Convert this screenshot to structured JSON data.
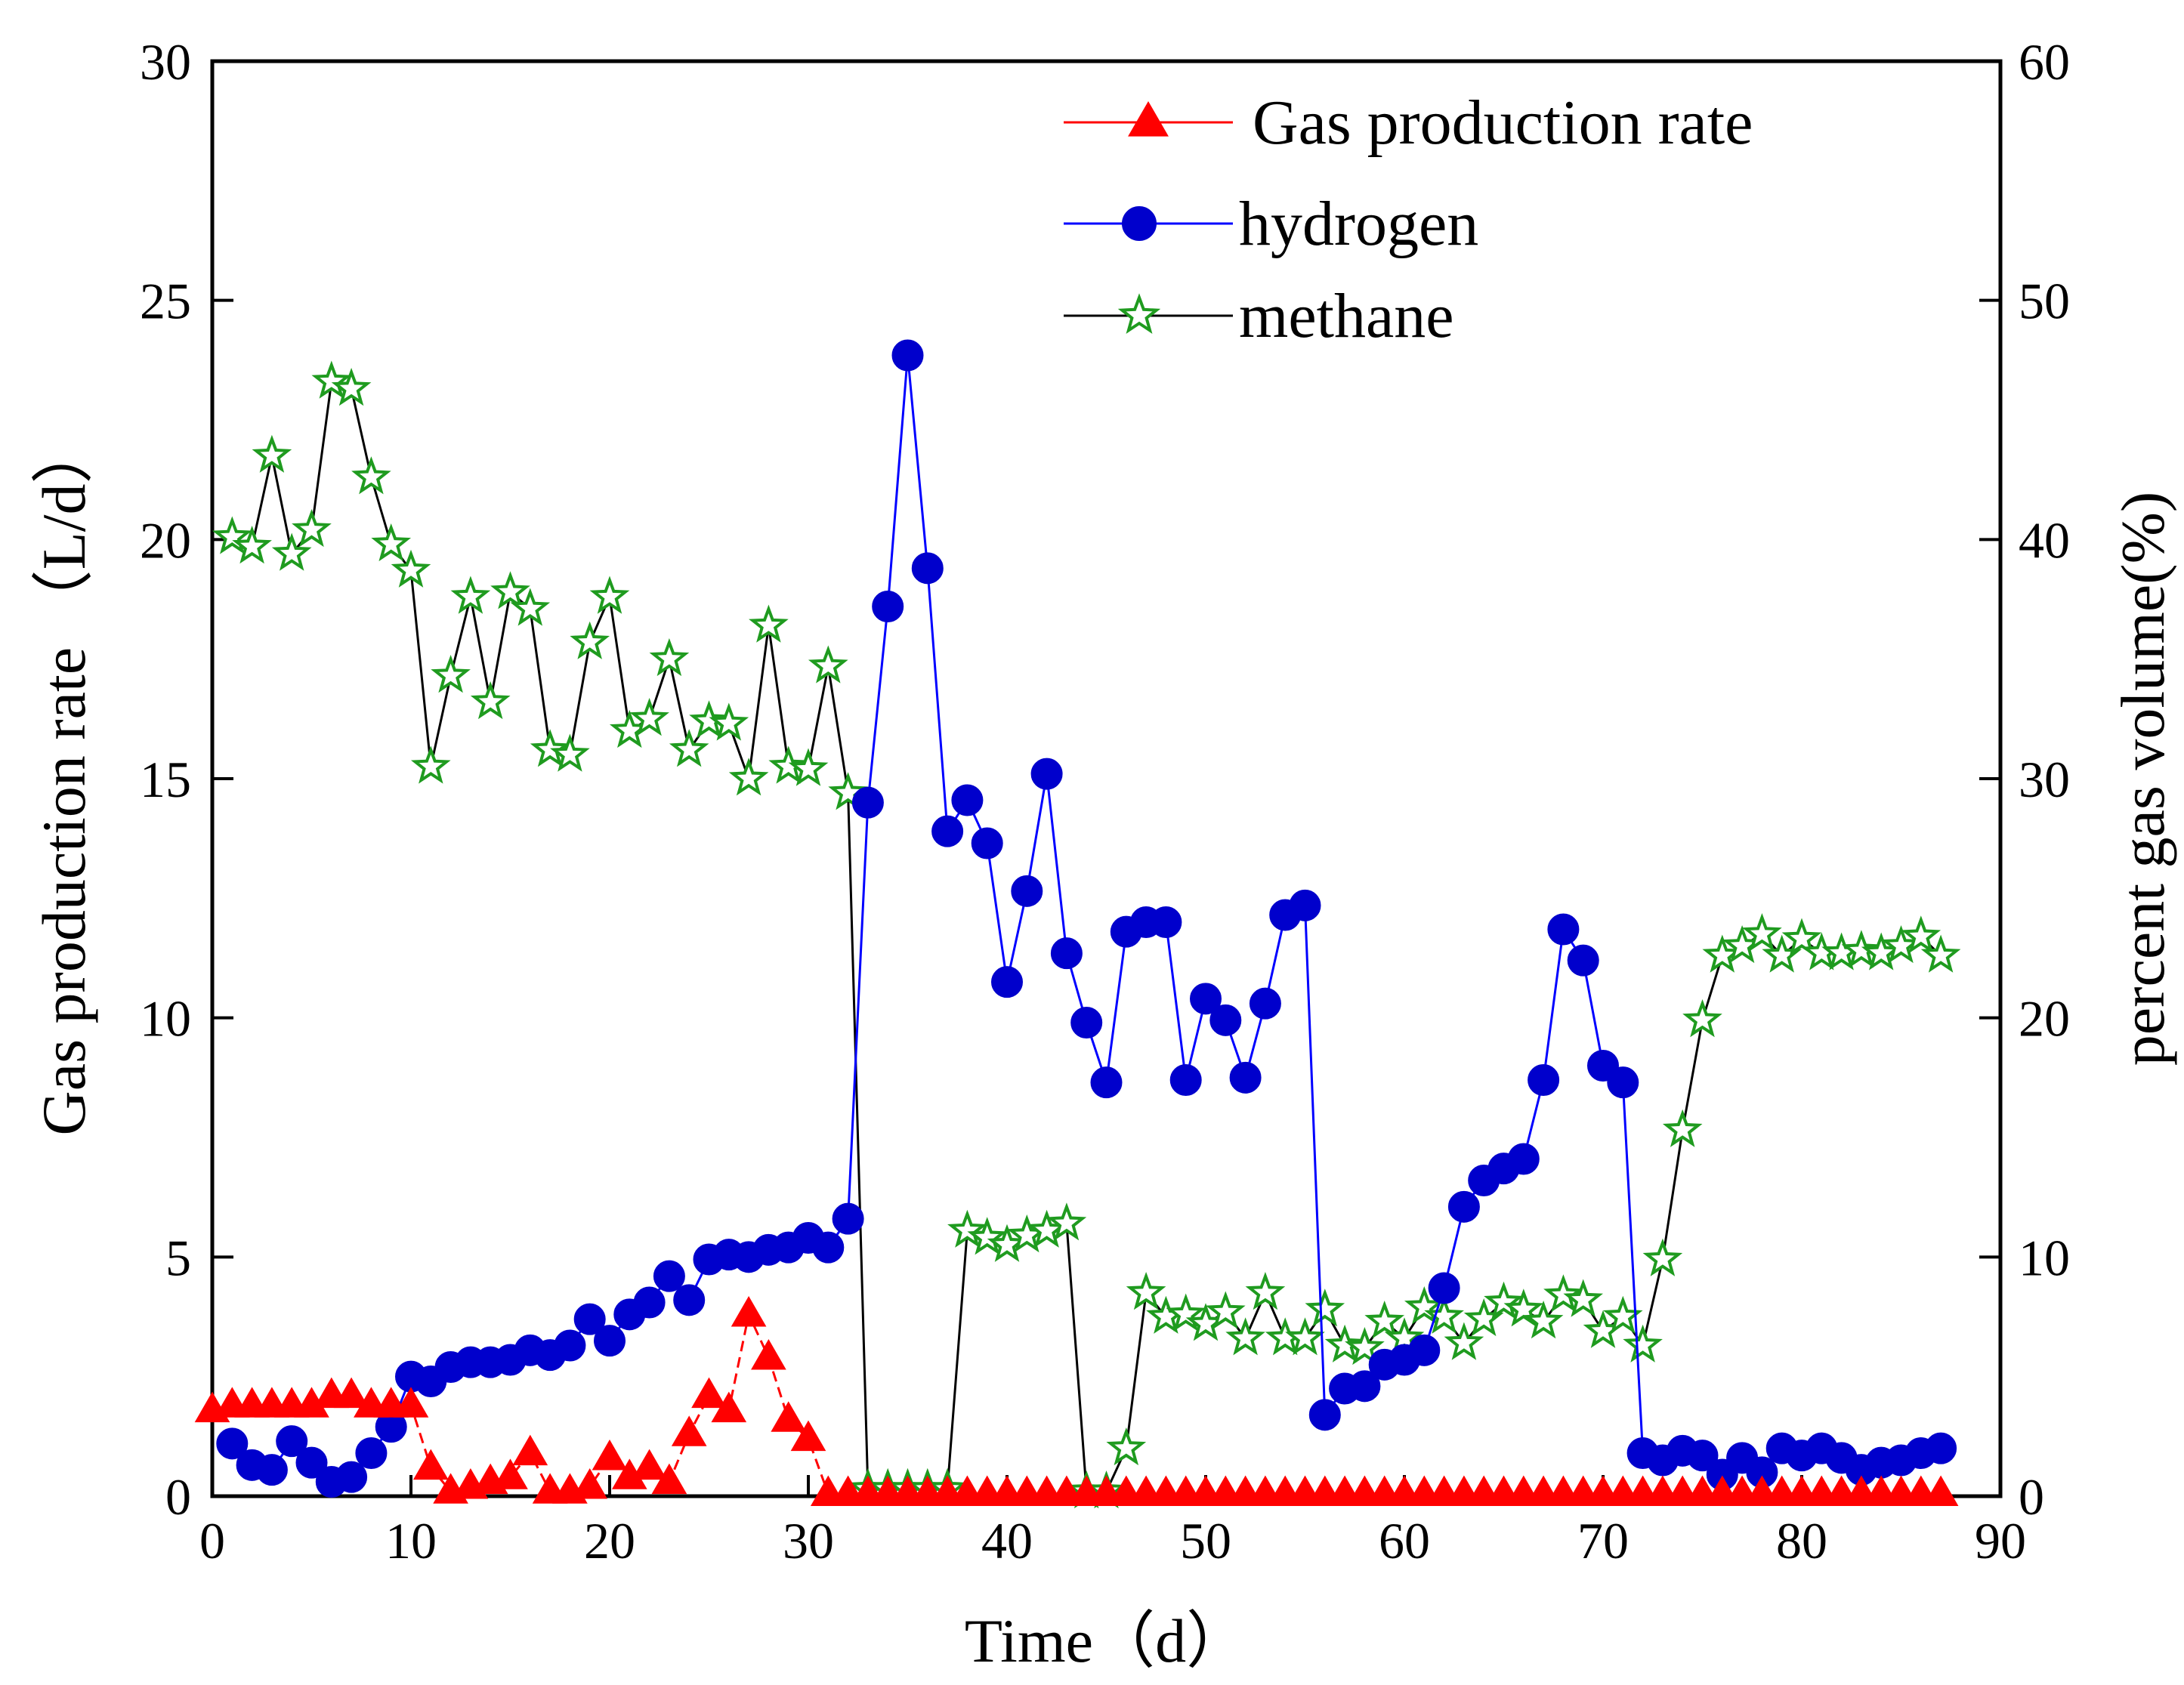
{
  "chart_data": {
    "type": "line",
    "xlabel": "Time（d）",
    "ylabel_left": "Gas production rate （L/d）",
    "ylabel_right": "percent gas volume(%)",
    "xlim": [
      0,
      90
    ],
    "ylim_left": [
      0,
      30
    ],
    "ylim_right": [
      0,
      60
    ],
    "x_ticks": [
      0,
      10,
      20,
      30,
      40,
      50,
      60,
      70,
      80,
      90
    ],
    "y_ticks_left": [
      0,
      5,
      10,
      15,
      20,
      25,
      30
    ],
    "y_ticks_right": [
      0,
      10,
      20,
      30,
      40,
      50,
      60
    ],
    "grid": false,
    "legend_position": "top-right",
    "series": [
      {
        "name": "Gas production rate",
        "axis": "left",
        "color": "#ff0000",
        "marker": "triangle",
        "x": [
          0,
          1,
          2,
          3,
          4,
          5,
          6,
          7,
          8,
          9,
          10,
          11,
          12,
          13,
          14,
          15,
          16,
          17,
          18,
          19,
          20,
          21,
          22,
          23,
          24,
          25,
          26,
          27,
          28,
          29,
          30,
          31,
          32,
          33,
          34,
          35,
          36,
          37,
          38,
          39,
          40,
          41,
          42,
          43,
          44,
          45,
          46,
          47,
          48,
          49,
          50,
          51,
          52,
          53,
          54,
          55,
          56,
          57,
          58,
          59,
          60,
          61,
          62,
          63,
          64,
          65,
          66,
          67,
          68,
          69,
          70,
          71,
          72,
          73,
          74,
          75,
          76,
          77,
          78,
          79,
          80,
          81,
          82,
          83,
          84,
          85,
          86,
          87
        ],
        "values": [
          1.8,
          1.9,
          1.9,
          1.9,
          1.9,
          1.9,
          2.1,
          2.1,
          1.9,
          1.9,
          1.9,
          0.6,
          0.1,
          0.2,
          0.3,
          0.4,
          0.9,
          0.1,
          0.1,
          0.2,
          0.8,
          0.4,
          0.6,
          0.3,
          1.3,
          2.1,
          1.8,
          3.8,
          2.9,
          1.6,
          1.2,
          0.05,
          0.05,
          0.05,
          0.05,
          0.05,
          0.05,
          0.05,
          0.05,
          0.05,
          0.05,
          0.05,
          0.05,
          0.05,
          0.05,
          0.05,
          0.05,
          0.05,
          0.05,
          0.05,
          0.05,
          0.05,
          0.05,
          0.05,
          0.05,
          0.05,
          0.05,
          0.05,
          0.05,
          0.05,
          0.05,
          0.05,
          0.05,
          0.05,
          0.05,
          0.05,
          0.05,
          0.05,
          0.05,
          0.05,
          0.05,
          0.05,
          0.05,
          0.05,
          0.05,
          0.05,
          0.05,
          0.05,
          0.05,
          0.05,
          0.05,
          0.05,
          0.05,
          0.05,
          0.05,
          0.05,
          0.05,
          0.05
        ]
      },
      {
        "name": "hydrogen",
        "axis": "right",
        "color": "#0000cc",
        "marker": "circle",
        "x": [
          1,
          2,
          3,
          4,
          5,
          6,
          7,
          8,
          9,
          10,
          11,
          12,
          13,
          14,
          15,
          16,
          17,
          18,
          19,
          20,
          21,
          22,
          23,
          24,
          25,
          26,
          27,
          28,
          29,
          30,
          31,
          32,
          33,
          34,
          35,
          36,
          37,
          38,
          39,
          40,
          41,
          42,
          43,
          44,
          45,
          46,
          47,
          48,
          49,
          50,
          51,
          52,
          53,
          54,
          55,
          56,
          57,
          58,
          59,
          60,
          61,
          62,
          63,
          64,
          65,
          66,
          67,
          68,
          69,
          70,
          71,
          72,
          73,
          74,
          75,
          76,
          77,
          78,
          79,
          80,
          81,
          82,
          83,
          84,
          85,
          86,
          87
        ],
        "values": [
          2.2,
          1.3,
          1.1,
          2.3,
          1.4,
          0.6,
          0.8,
          1.8,
          2.9,
          5.0,
          4.8,
          5.4,
          5.6,
          5.6,
          5.7,
          6.1,
          5.9,
          6.3,
          7.4,
          6.5,
          7.6,
          8.1,
          9.2,
          8.2,
          9.9,
          10.1,
          10.0,
          10.3,
          10.4,
          10.8,
          10.4,
          11.6,
          29.0,
          37.2,
          47.7,
          38.8,
          27.8,
          29.1,
          27.3,
          21.5,
          25.3,
          30.2,
          22.7,
          19.8,
          17.3,
          23.6,
          24.0,
          24.0,
          17.4,
          20.8,
          19.9,
          17.5,
          20.6,
          24.3,
          24.7,
          3.4,
          4.5,
          4.6,
          5.5,
          5.7,
          6.1,
          8.7,
          12.1,
          13.2,
          13.7,
          14.1,
          17.4,
          23.7,
          22.4,
          18.0,
          17.3,
          1.8,
          1.5,
          1.9,
          1.7,
          0.9,
          1.6,
          1.0,
          2.0,
          1.7,
          2.0,
          1.6,
          1.1,
          1.4,
          1.5,
          1.8,
          2.0
        ]
      },
      {
        "name": "methane",
        "axis": "right",
        "color": "#1f9b1f",
        "marker": "star",
        "x": [
          1,
          2,
          3,
          4,
          5,
          6,
          7,
          8,
          9,
          10,
          11,
          12,
          13,
          14,
          15,
          16,
          17,
          18,
          19,
          20,
          21,
          22,
          23,
          24,
          25,
          26,
          27,
          28,
          29,
          30,
          31,
          32,
          33,
          34,
          35,
          36,
          37,
          38,
          39,
          40,
          41,
          42,
          43,
          44,
          45,
          46,
          47,
          48,
          49,
          50,
          51,
          52,
          53,
          54,
          55,
          56,
          57,
          58,
          59,
          60,
          61,
          62,
          63,
          64,
          65,
          66,
          67,
          68,
          69,
          70,
          71,
          72,
          73,
          74,
          75,
          76,
          77,
          78,
          79,
          80,
          81,
          82,
          83,
          84,
          85,
          86,
          87
        ],
        "values": [
          40.1,
          39.7,
          43.5,
          39.4,
          40.4,
          46.6,
          46.3,
          42.6,
          39.8,
          38.7,
          30.5,
          34.3,
          37.6,
          33.2,
          37.8,
          37.1,
          31.2,
          31.0,
          35.7,
          37.6,
          32.0,
          32.5,
          35.0,
          31.2,
          32.4,
          32.3,
          30.0,
          36.4,
          30.5,
          30.4,
          34.7,
          29.4,
          0.3,
          0.3,
          0.3,
          0.3,
          0.3,
          11.1,
          10.8,
          10.5,
          10.9,
          11.1,
          11.4,
          0.2,
          0.2,
          2.0,
          8.5,
          7.5,
          7.6,
          7.2,
          7.7,
          6.6,
          8.5,
          6.6,
          6.6,
          7.8,
          6.3,
          6.2,
          7.3,
          6.6,
          7.9,
          7.5,
          6.4,
          7.4,
          8.1,
          7.8,
          7.3,
          8.4,
          8.2,
          6.9,
          7.5,
          6.3,
          9.9,
          15.3,
          19.9,
          22.6,
          23.0,
          23.5,
          22.6,
          23.3,
          22.7,
          22.7,
          22.8,
          22.7,
          23.0,
          23.4,
          22.6
        ]
      }
    ],
    "legend": [
      {
        "label": "Gas production rate",
        "marker": "triangle"
      },
      {
        "label": "hydrogen",
        "marker": "circle"
      },
      {
        "label": "methane",
        "marker": "star"
      }
    ]
  }
}
